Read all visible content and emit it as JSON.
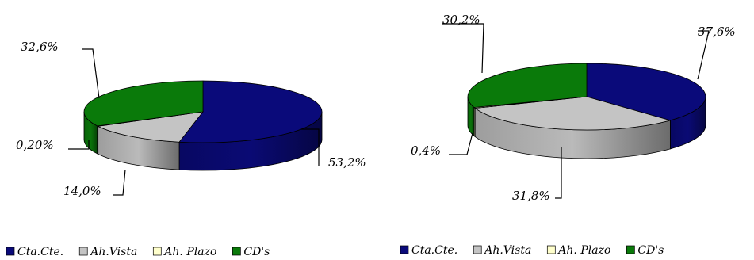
{
  "chart_data": [
    {
      "type": "pie",
      "categories": [
        "Cta.Cte.",
        "Ah.Vista",
        "Ah. Plazo",
        "CD's"
      ],
      "values": [
        53.2,
        14.0,
        0.2,
        32.6
      ],
      "data_labels": [
        "53,2%",
        "14,0%",
        "0,20%",
        "32,6%"
      ],
      "legend": [
        "Cta.Cte.",
        "Ah.Vista",
        "Ah. Plazo",
        "CD's"
      ],
      "legend_placement": "bottom"
    },
    {
      "type": "pie",
      "categories": [
        "Cta.Cte.",
        "Ah.Vista",
        "Ah. Plazo",
        "CD's"
      ],
      "values": [
        37.6,
        31.8,
        0.4,
        30.2
      ],
      "data_labels": [
        "37,6%",
        "31,8%",
        "0,4%",
        "30,2%"
      ],
      "legend": [
        "Cta.Cte.",
        "Ah.Vista",
        "Ah. Plazo",
        "CD's"
      ],
      "legend_placement": "bottom"
    }
  ],
  "colors": {
    "Cta.Cte.": "#0a0a7a",
    "Ah.Vista": "#c4c4c4",
    "Ah. Plazo": "#ffffcc",
    "CD's": "#0a7a0a"
  }
}
